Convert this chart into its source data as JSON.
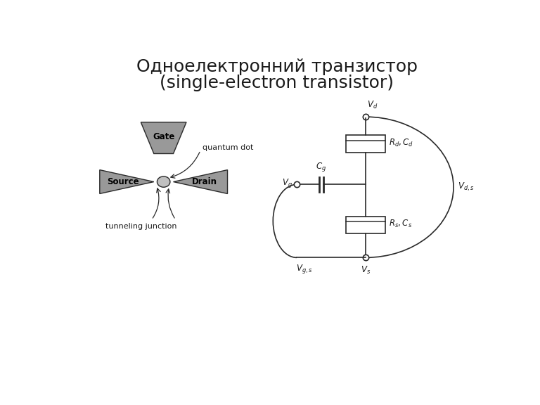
{
  "title_line1": "Одноелектронний транзистор",
  "title_line2": "(single-electron transistor)",
  "title_fontsize": 18,
  "bg_color": "#ffffff",
  "gray": "#999999",
  "line_color": "#2a2a2a",
  "text_color": "#1a1a1a",
  "gate_label": "Gate",
  "source_label": "Source",
  "drain_label": "Drain",
  "quantum_dot_label": "quantum dot",
  "tunneling_label": "tunneling junction"
}
